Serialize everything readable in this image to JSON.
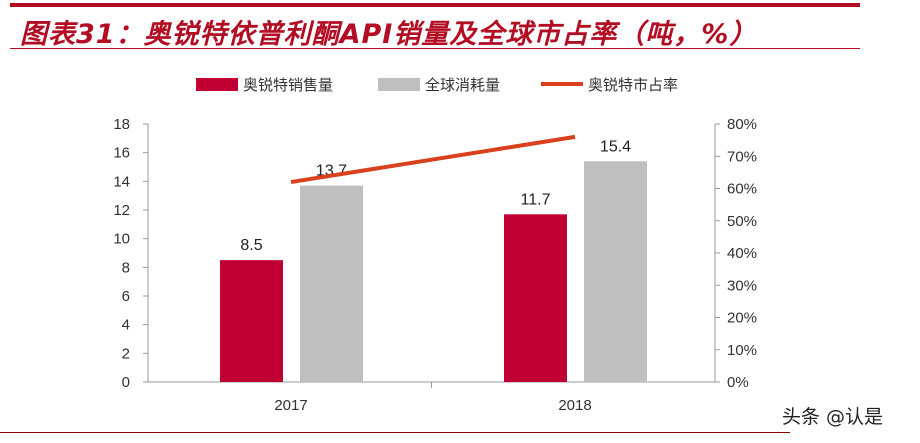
{
  "title": "图表31：奥锐特依普利酮API销量及全球市占率（吨，%）",
  "watermark": "头条 @认是",
  "chart_data": {
    "type": "bar",
    "categories": [
      "2017",
      "2018"
    ],
    "series": [
      {
        "name": "奥锐特销售量",
        "type": "bar",
        "axis": "left",
        "color": "#c00033",
        "values": [
          8.5,
          11.7
        ]
      },
      {
        "name": "全球消耗量",
        "type": "bar",
        "axis": "left",
        "color": "#bfbfbf",
        "values": [
          13.7,
          15.4
        ]
      },
      {
        "name": "奥锐特市占率",
        "type": "line",
        "axis": "right",
        "color": "#d9411e",
        "values": [
          62,
          76
        ]
      }
    ],
    "data_labels": [
      "8.5",
      "13.7",
      "11.7",
      "15.4"
    ],
    "ylim": [
      0,
      18
    ],
    "yticks": [
      "0",
      "2",
      "4",
      "6",
      "8",
      "10",
      "12",
      "14",
      "16",
      "18"
    ],
    "y2lim": [
      0,
      80
    ],
    "y2ticks": [
      "0%",
      "10%",
      "20%",
      "30%",
      "40%",
      "50%",
      "60%",
      "70%",
      "80%"
    ],
    "legend": "top",
    "grid": false
  }
}
